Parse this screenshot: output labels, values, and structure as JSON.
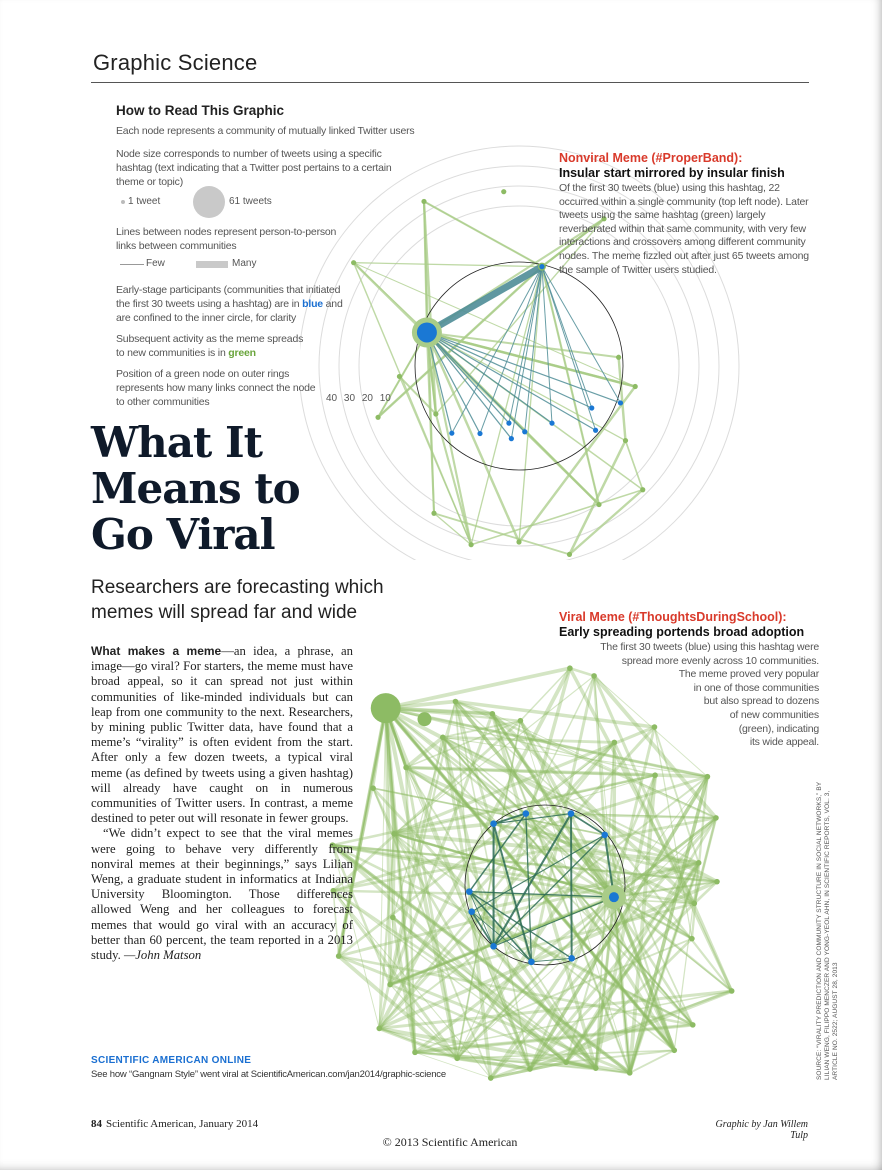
{
  "header": {
    "section": "Graphic Science"
  },
  "legend": {
    "title": "How to Read This Graphic",
    "line1": "Each node represents a community of mutually linked Twitter users",
    "line2": "Node size corresponds to number of tweets using a specific hashtag (text indicating that a Twitter post pertains to a certain theme or topic)",
    "size_small": "1 tweet",
    "size_big": "61 tweets",
    "line3": "Lines between nodes represent person-to-person links between communities",
    "few": "Few",
    "many": "Many",
    "line4_a": "Early-stage participants (communities that initiated the first 30 tweets using a hashtag) are in ",
    "line4_blue": "blue",
    "line4_b": " and are confined to the inner circle, for clarity",
    "line5_a": "Subsequent activity as the meme spreads to new communities is in ",
    "line5_green": "green",
    "line6": "Position of a green node on outer rings represents how many links connect the node to other communities",
    "rings": [
      "40",
      "30",
      "20",
      "10"
    ]
  },
  "headline": {
    "line1": "What It",
    "line2": "Means to",
    "line3": "Go Viral"
  },
  "dek": "Researchers are forecasting which memes will spread far and wide",
  "body": {
    "lead": "What makes a meme",
    "p1": "—an idea, a phrase, an image—go viral? For starters, the meme must have broad appeal, so it can spread not just within communities of like-minded individuals but can leap from one community to the next. Researchers, by mining public Twitter data, have found that a meme’s “virality” is often evident from the start. After only a few dozen tweets, a typical viral meme (as defined by tweets using a given hashtag) will already have caught on in numerous communities of Twitter users. In contrast, a meme destined to peter out will resonate in fewer groups.",
    "p2": "“We didn’t expect to see that the viral memes were going to behave very differently from nonviral memes at their beginnings,” says Lilian Weng, a graduate student in informatics at Indiana University Bloomington. Those differences allowed Weng and her colleagues to forecast memes that would go viral with an accuracy of better than 60 percent, the team reported in a 2013 study.",
    "byline": " —John Matson"
  },
  "online": {
    "heading": "SCIENTIFIC AMERICAN ONLINE",
    "text": "See how “Gangnam Style” went viral at ScientificAmerican.com/jan2014/graphic-science"
  },
  "nonviral": {
    "title": "Nonviral Meme (#ProperBand):",
    "subtitle": "Insular start mirrored by insular finish",
    "text": "Of the first 30 tweets (blue) using this hashtag, 22 occurred within a single community (top left node). Later tweets using the same hashtag (green) largely reverberated within that same community, with very few interactions and crossovers among different community nodes. The meme fizzled out after just 65 tweets among the sample of Twitter users studied."
  },
  "viral": {
    "title": "Viral Meme (#ThoughtsDuringSchool):",
    "subtitle": "Early spreading portends broad adoption",
    "lines": [
      "The first 30 tweets (blue) using this hashtag were",
      "spread more evenly across 10 communities.",
      "The meme proved very popular",
      "in one of those communities",
      "but also spread to dozens",
      "of new communities",
      "(green), indicating",
      "its wide appeal."
    ]
  },
  "source_credit": "SOURCE: “VIRALITY PREDICTION AND COMMUNITY STRUCTURE IN SOCIAL NETWORKS,” BY LILIAN WENG, FILIPPO MENCZER AND YONG-YEOL AHN, IN SCIENTIFIC REPORTS, VOL. 3, ARTICLE NO. 2522; AUGUST 28, 2013",
  "footer": {
    "page": "84",
    "pub": "Scientific American, January 2014",
    "graphic_credit": "Graphic by Jan Willem Tulp",
    "copyright": "© 2013 Scientific American"
  },
  "colors": {
    "blue": "#1a78d4",
    "green": "#8dbb64",
    "green_light": "#a9cc88",
    "teal": "#4f8d97",
    "red": "#d93a2b"
  }
}
